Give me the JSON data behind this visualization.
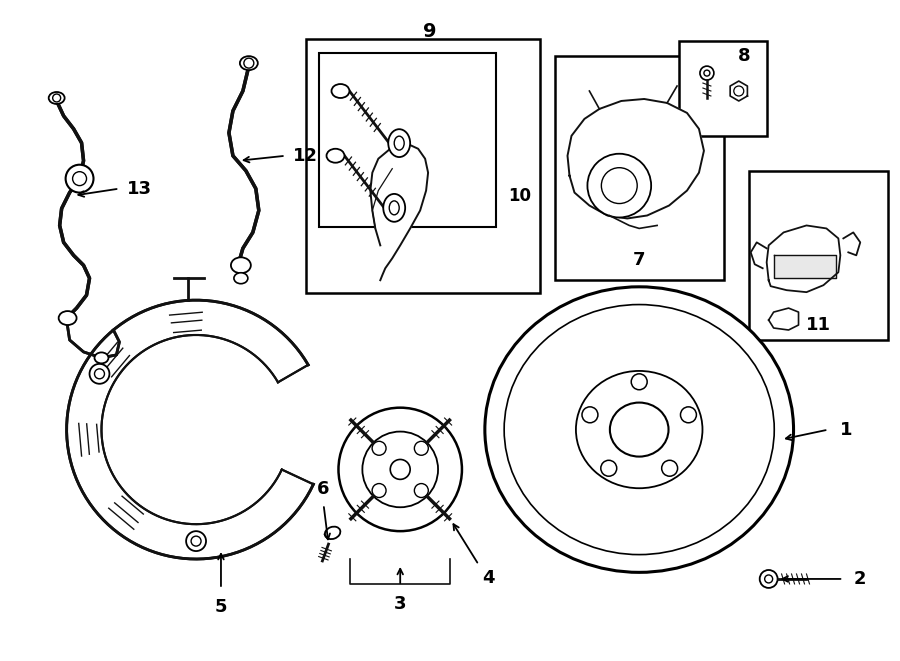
{
  "bg_color": "#ffffff",
  "line_color": "#111111",
  "fig_width": 9.0,
  "fig_height": 6.61,
  "dpi": 100
}
